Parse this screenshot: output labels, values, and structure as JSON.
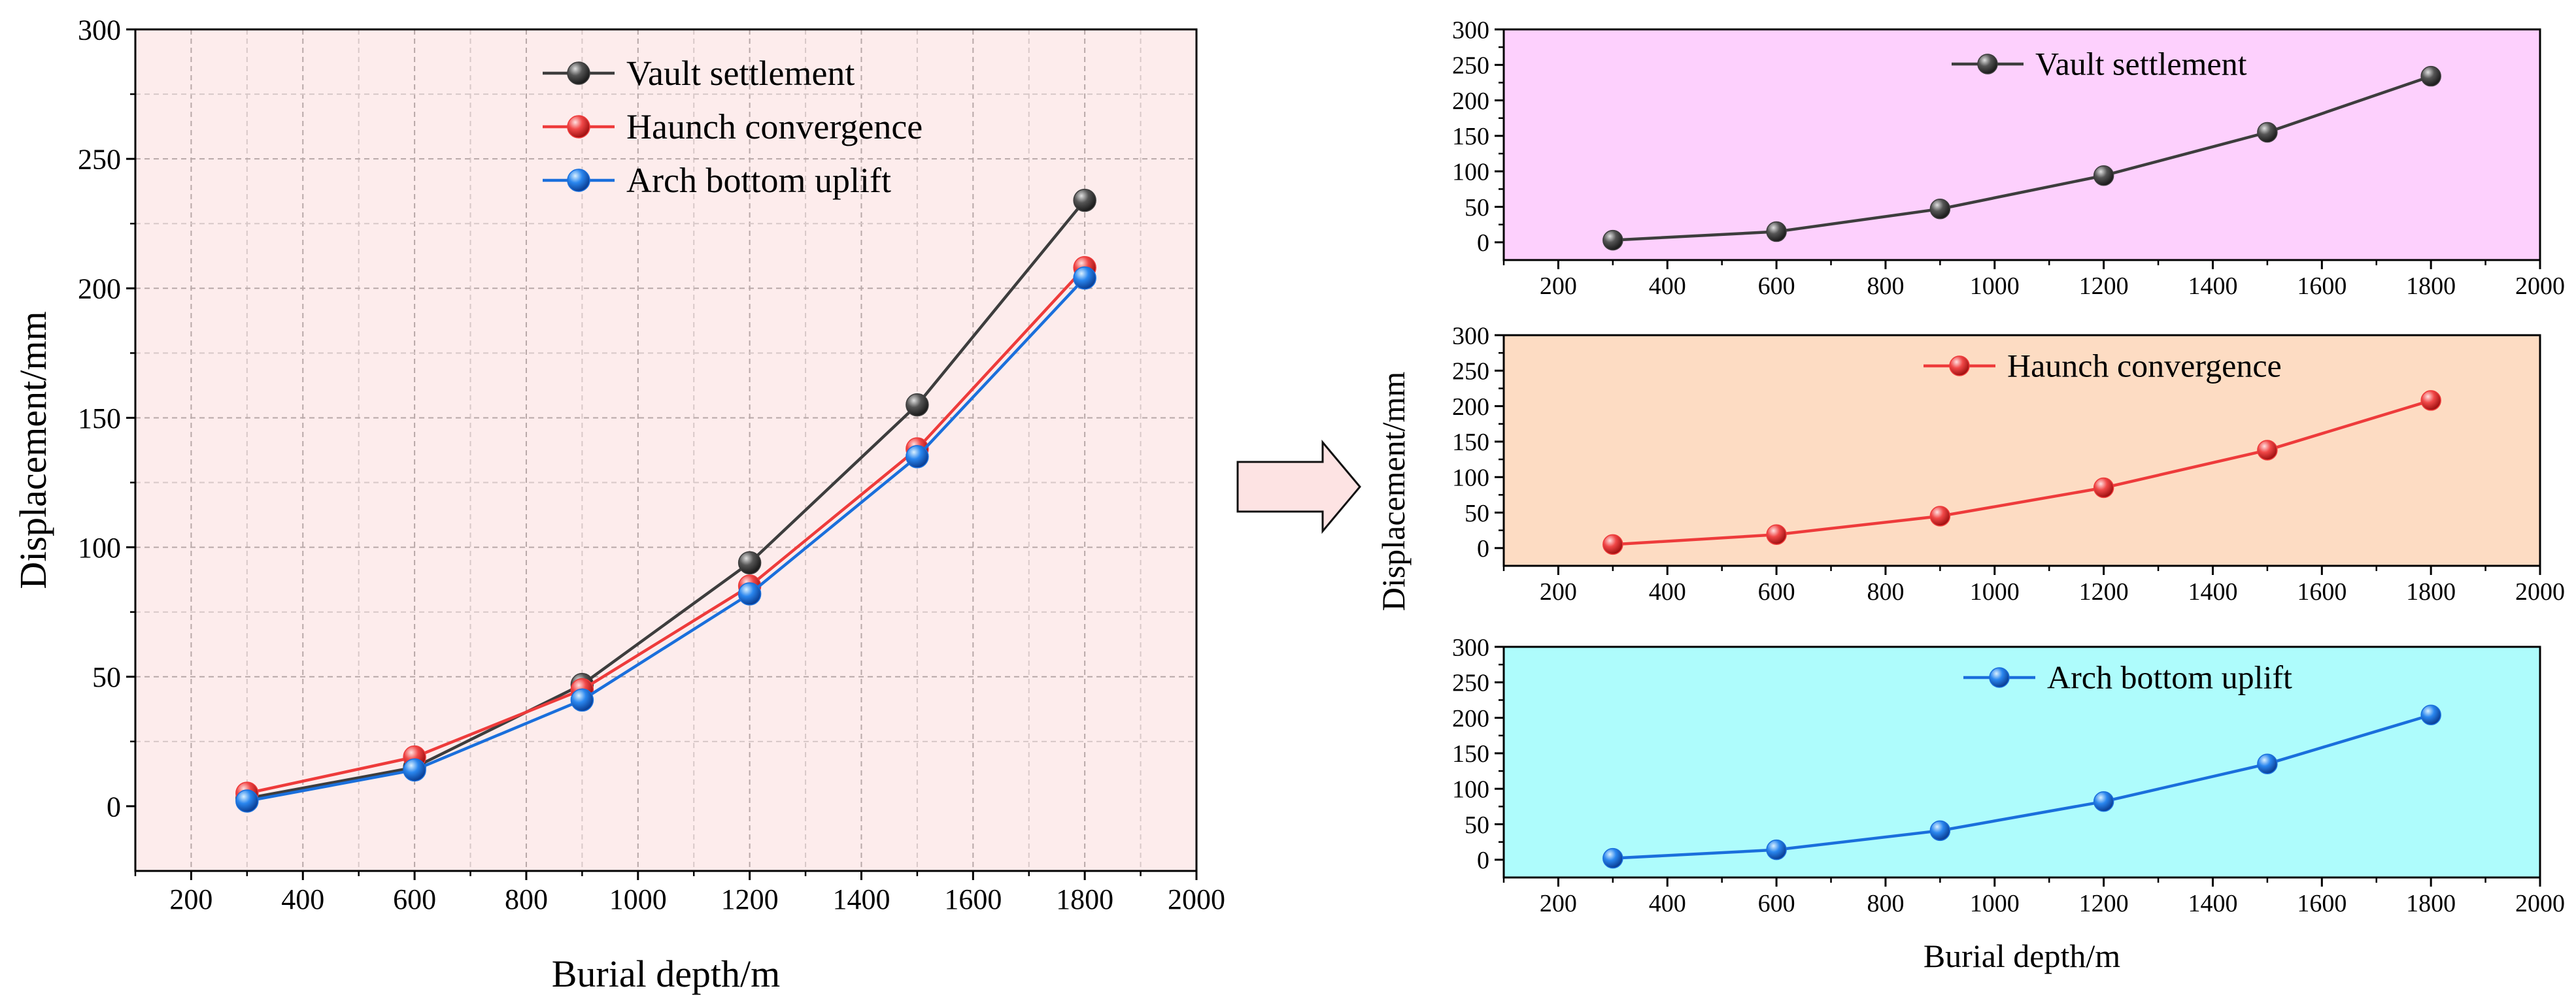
{
  "chart_data": [
    {
      "id": "main",
      "type": "line",
      "title": "",
      "xlabel": "Burial depth/m",
      "ylabel": "Displacement/mm",
      "xlim": [
        100,
        2000
      ],
      "ylim": [
        -25,
        300
      ],
      "x_ticks": [
        200,
        400,
        600,
        800,
        1000,
        1200,
        1400,
        1600,
        1800,
        2000
      ],
      "y_ticks": [
        0,
        50,
        100,
        150,
        200,
        250,
        300
      ],
      "grid": true,
      "background": "#fdecec",
      "legend_position": "top-center",
      "x": [
        300,
        600,
        900,
        1200,
        1500,
        1800
      ],
      "series": [
        {
          "name": "Vault settlement",
          "color": "#3d3d3d",
          "values": [
            3,
            15,
            47,
            94,
            155,
            234
          ]
        },
        {
          "name": "Haunch convergence",
          "color": "#ee3b3b",
          "values": [
            5,
            19,
            45,
            85,
            138,
            208
          ]
        },
        {
          "name": "Arch bottom uplift",
          "color": "#1a6fdc",
          "values": [
            2,
            14,
            41,
            82,
            135,
            204
          ]
        }
      ]
    },
    {
      "id": "vault",
      "type": "line",
      "xlabel": "",
      "ylabel": "",
      "xlim": [
        100,
        2000
      ],
      "ylim": [
        -25,
        300
      ],
      "x_ticks": [
        200,
        400,
        600,
        800,
        1000,
        1200,
        1400,
        1600,
        1800,
        2000
      ],
      "y_ticks": [
        0,
        50,
        100,
        150,
        200,
        250,
        300
      ],
      "grid": false,
      "background": "#fdd0fd",
      "legend_position": "top-center",
      "x": [
        300,
        600,
        900,
        1200,
        1500,
        1800
      ],
      "series": [
        {
          "name": "Vault settlement",
          "color": "#3d3d3d",
          "values": [
            3,
            15,
            47,
            94,
            155,
            234
          ]
        }
      ]
    },
    {
      "id": "haunch",
      "type": "line",
      "xlabel": "",
      "ylabel": "",
      "xlim": [
        100,
        2000
      ],
      "ylim": [
        -25,
        300
      ],
      "x_ticks": [
        200,
        400,
        600,
        800,
        1000,
        1200,
        1400,
        1600,
        1800,
        2000
      ],
      "y_ticks": [
        0,
        50,
        100,
        150,
        200,
        250,
        300
      ],
      "grid": false,
      "background": "#fddcc3",
      "legend_position": "top-center",
      "x": [
        300,
        600,
        900,
        1200,
        1500,
        1800
      ],
      "series": [
        {
          "name": "Haunch convergence",
          "color": "#ee3b3b",
          "values": [
            5,
            19,
            45,
            85,
            138,
            208
          ]
        }
      ]
    },
    {
      "id": "arch",
      "type": "line",
      "xlabel": "Burial depth/m",
      "ylabel": "",
      "xlim": [
        100,
        2000
      ],
      "ylim": [
        -25,
        300
      ],
      "x_ticks": [
        200,
        400,
        600,
        800,
        1000,
        1200,
        1400,
        1600,
        1800,
        2000
      ],
      "y_ticks": [
        0,
        50,
        100,
        150,
        200,
        250,
        300
      ],
      "grid": false,
      "background": "#aefcfc",
      "legend_position": "top-center",
      "x": [
        300,
        600,
        900,
        1200,
        1500,
        1800
      ],
      "series": [
        {
          "name": "Arch bottom uplift",
          "color": "#1a6fdc",
          "values": [
            2,
            14,
            41,
            82,
            135,
            204
          ]
        }
      ]
    }
  ],
  "stacked_panels_ylabel": "Displacement/mm",
  "arrow_icon": "right-arrow-icon"
}
